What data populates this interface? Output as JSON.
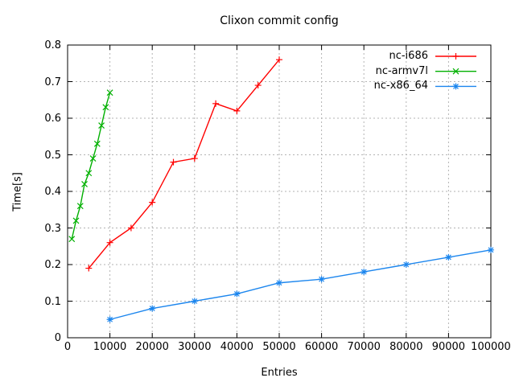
{
  "chart_data": {
    "type": "line",
    "title": "Clixon commit config",
    "xlabel": "Entries",
    "ylabel": "Time[s]",
    "xlim": [
      0,
      100000
    ],
    "ylim": [
      0,
      0.8
    ],
    "xticks": [
      0,
      10000,
      20000,
      30000,
      40000,
      50000,
      60000,
      70000,
      80000,
      90000,
      100000
    ],
    "xtick_labels": [
      "0",
      "10000",
      "20000",
      "30000",
      "40000",
      "50000",
      "60000",
      "70000",
      "80000",
      "90000",
      "100000"
    ],
    "yticks": [
      0,
      0.1,
      0.2,
      0.3,
      0.4,
      0.5,
      0.6,
      0.7,
      0.8
    ],
    "ytick_labels": [
      "0",
      "0.1",
      "0.2",
      "0.3",
      "0.4",
      "0.5",
      "0.6",
      "0.7",
      "0.8"
    ],
    "grid": true,
    "legend_position": "top-right-inside",
    "colors": {
      "background": "#ffffff",
      "grid": "#b3b3b3",
      "axis": "#000000",
      "text": "#000000"
    },
    "series": [
      {
        "name": "nc-i686",
        "color": "#ff0000",
        "marker": "plus",
        "x": [
          5000,
          10000,
          15000,
          20000,
          25000,
          30000,
          35000,
          40000,
          45000,
          50000
        ],
        "y": [
          0.19,
          0.26,
          0.3,
          0.37,
          0.48,
          0.49,
          0.64,
          0.62,
          0.69,
          0.76
        ]
      },
      {
        "name": "nc-armv7l",
        "color": "#00b000",
        "marker": "cross",
        "x": [
          1000,
          2000,
          3000,
          4000,
          5000,
          6000,
          7000,
          8000,
          9000,
          10000
        ],
        "y": [
          0.27,
          0.32,
          0.36,
          0.42,
          0.45,
          0.49,
          0.53,
          0.58,
          0.63,
          0.67
        ]
      },
      {
        "name": "nc-x86_64",
        "color": "#1c86ee",
        "marker": "asterisk",
        "x": [
          10000,
          20000,
          30000,
          40000,
          50000,
          60000,
          70000,
          80000,
          90000,
          100000
        ],
        "y": [
          0.05,
          0.08,
          0.1,
          0.12,
          0.15,
          0.16,
          0.18,
          0.2,
          0.22,
          0.24
        ]
      }
    ]
  }
}
